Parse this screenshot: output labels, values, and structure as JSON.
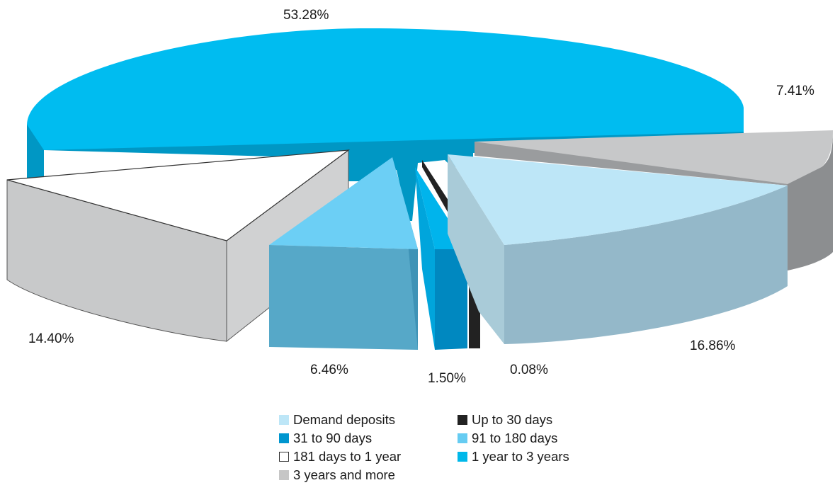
{
  "chart_data": {
    "type": "pie",
    "style": "3d-exploded",
    "slices": [
      {
        "label": "Demand deposits",
        "value": 16.86,
        "display": "16.86%",
        "color": "#bde6f7"
      },
      {
        "label": "Up to 30 days",
        "value": 0.08,
        "display": "0.08%",
        "color": "#222222"
      },
      {
        "label": "31 to 90 days",
        "value": 1.5,
        "display": "1.50%",
        "color": "#0096cf"
      },
      {
        "label": "91 to 180 days",
        "value": 6.46,
        "display": "6.46%",
        "color": "#66ccf2"
      },
      {
        "label": "181 days to 1 year",
        "value": 14.4,
        "display": "14.40%",
        "color": "#ffffff"
      },
      {
        "label": "1 year to 3 years",
        "value": 53.28,
        "display": "53.28%",
        "color": "#00b8ea"
      },
      {
        "label": "3 years and more",
        "value": 7.41,
        "display": "7.41%",
        "color": "#c6c6c6"
      }
    ],
    "legend_placement": "bottom"
  },
  "legend": {
    "items": [
      {
        "label": "Demand deposits",
        "color": "#bde6f7",
        "border": "#bde6f7"
      },
      {
        "label": "Up to 30 days",
        "color": "#222222",
        "border": "#222222"
      },
      {
        "label": "31 to 90 days",
        "color": "#0096cf",
        "border": "#0096cf"
      },
      {
        "label": "91 to 180 days",
        "color": "#66ccf2",
        "border": "#66ccf2"
      },
      {
        "label": "181 days to 1 year",
        "color": "#ffffff",
        "border": "#333333"
      },
      {
        "label": "1 year to 3 years",
        "color": "#00b8ea",
        "border": "#00b8ea"
      },
      {
        "label": "3 years and more",
        "color": "#c6c6c6",
        "border": "#c6c6c6"
      }
    ]
  }
}
